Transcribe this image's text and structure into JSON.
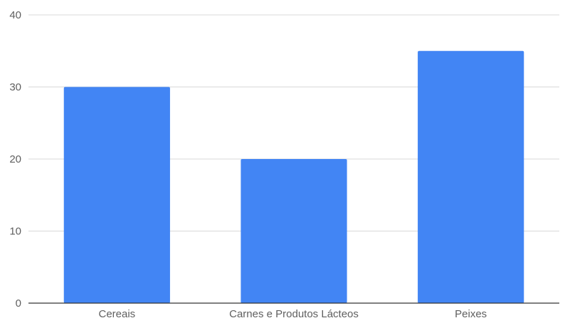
{
  "chart_data": {
    "type": "bar",
    "categories": [
      "Cereais",
      "Carnes e Produtos Lácteos",
      "Peixes"
    ],
    "series": [
      {
        "values": [
          30,
          20,
          35
        ]
      }
    ],
    "title": "",
    "xlabel": "",
    "ylabel": "",
    "ylim": [
      0,
      40
    ],
    "yticks": [
      "0",
      "10",
      "20",
      "30",
      "40"
    ],
    "grid": true,
    "legend": "none",
    "colors": {
      "bar": "#4285f4",
      "grid": "#d9d9d9",
      "axis": "#333333",
      "text": "#5f5f5f"
    }
  }
}
